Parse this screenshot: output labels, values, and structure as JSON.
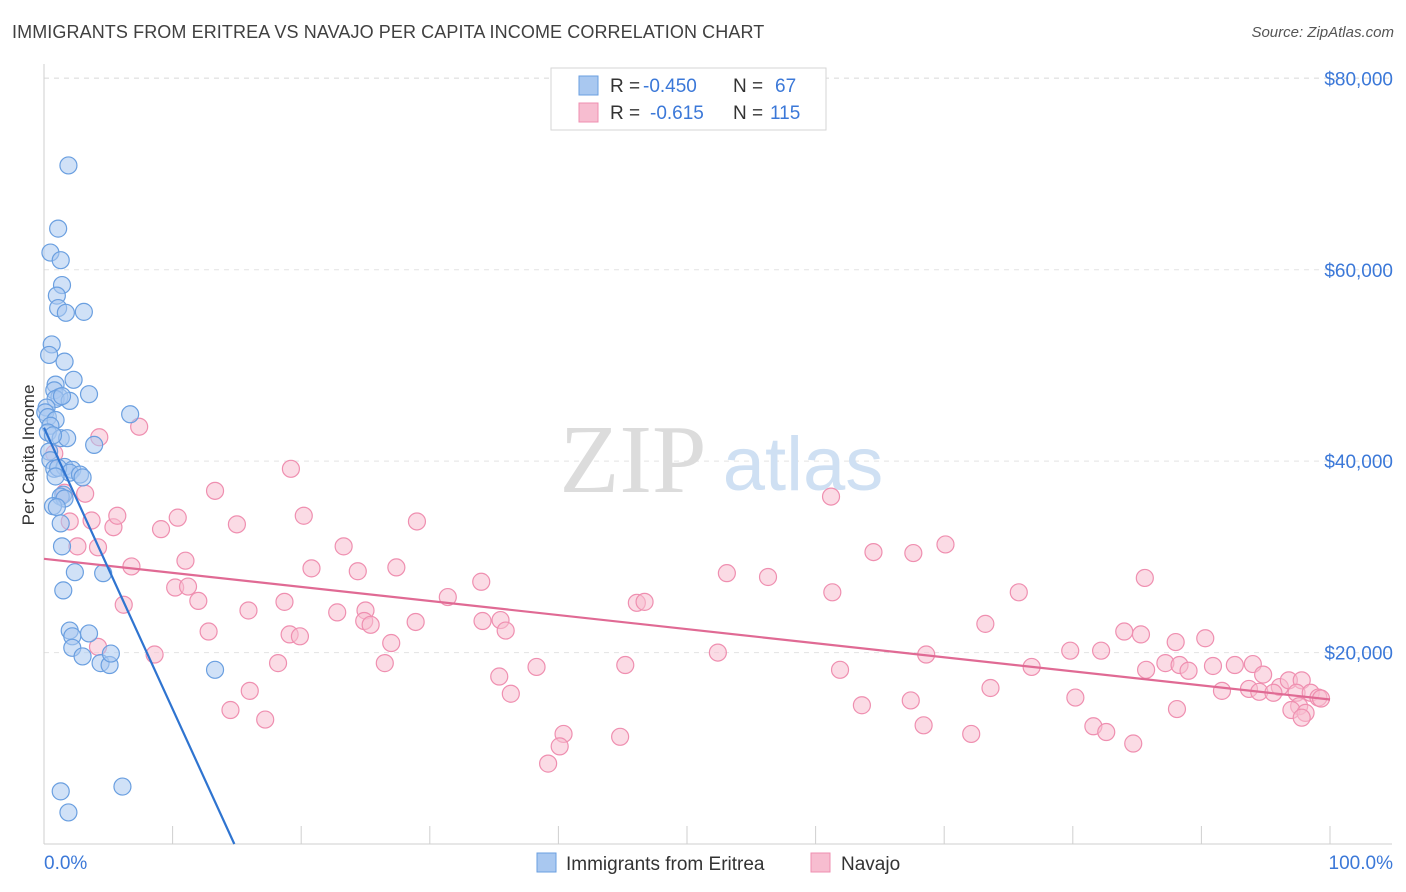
{
  "title": "IMMIGRANTS FROM ERITREA VS NAVAJO PER CAPITA INCOME CORRELATION CHART",
  "source": "Source: ZipAtlas.com",
  "watermark": {
    "zip": "ZIP",
    "atlas": "atlas"
  },
  "legend_box": {
    "rows": [
      {
        "r_label": "R =",
        "r_value": "-0.450",
        "n_label": "N =",
        "n_value": "67"
      },
      {
        "r_label": "R =",
        "r_value": "-0.615",
        "n_label": "N =",
        "n_value": "115"
      }
    ]
  },
  "bottom_legend": [
    "Immigrants from Eritrea",
    "Navajo"
  ],
  "colors": {
    "eritrea_fill": "#a9c8f0",
    "eritrea_stroke": "#6a9fe0",
    "eritrea_line": "#2f74d0",
    "navajo_fill": "#f7bdd0",
    "navajo_stroke": "#ef8fb0",
    "navajo_line": "#e06a94",
    "value_text": "#3b78d8",
    "grid": "#e3e3e3"
  },
  "chart_data": {
    "type": "scatter",
    "title": "IMMIGRANTS FROM ERITREA VS NAVAJO PER CAPITA INCOME CORRELATION CHART",
    "xlabel": "",
    "ylabel": "Per Capita Income",
    "x_tick_labels": [
      "0.0%",
      "100.0%"
    ],
    "y_tick_labels": [
      "$20,000",
      "$40,000",
      "$60,000",
      "$80,000"
    ],
    "y_ticks": [
      20000,
      40000,
      60000,
      80000
    ],
    "xlim": [
      0,
      100
    ],
    "ylim": [
      0,
      81500
    ],
    "grid": true,
    "legend_position": "top-center",
    "series": [
      {
        "name": "Immigrants from Eritrea",
        "r": -0.45,
        "n": 67,
        "trend": {
          "x0": 0,
          "y0": 43500,
          "x1": 14.8,
          "y1": 0
        },
        "points": [
          [
            1.9,
            70900
          ],
          [
            1.1,
            64300
          ],
          [
            0.5,
            61800
          ],
          [
            1.3,
            61000
          ],
          [
            1.4,
            58400
          ],
          [
            1.0,
            57300
          ],
          [
            1.1,
            56000
          ],
          [
            1.7,
            55500
          ],
          [
            3.1,
            55600
          ],
          [
            0.6,
            52200
          ],
          [
            0.4,
            51100
          ],
          [
            1.6,
            50400
          ],
          [
            2.3,
            48500
          ],
          [
            0.9,
            48000
          ],
          [
            0.8,
            47400
          ],
          [
            1.2,
            46700
          ],
          [
            3.5,
            47000
          ],
          [
            0.9,
            46500
          ],
          [
            2.0,
            46300
          ],
          [
            1.4,
            46800
          ],
          [
            0.2,
            45600
          ],
          [
            0.1,
            45100
          ],
          [
            0.3,
            44600
          ],
          [
            0.9,
            44300
          ],
          [
            0.5,
            43700
          ],
          [
            6.7,
            44900
          ],
          [
            0.3,
            43000
          ],
          [
            1.3,
            42400
          ],
          [
            1.8,
            42400
          ],
          [
            0.7,
            42700
          ],
          [
            3.9,
            41700
          ],
          [
            0.4,
            41000
          ],
          [
            0.5,
            40100
          ],
          [
            0.8,
            39200
          ],
          [
            1.6,
            39400
          ],
          [
            2.2,
            39100
          ],
          [
            1.1,
            39300
          ],
          [
            2.0,
            38800
          ],
          [
            2.8,
            38600
          ],
          [
            3.0,
            38300
          ],
          [
            0.9,
            38400
          ],
          [
            1.5,
            36500
          ],
          [
            1.3,
            36300
          ],
          [
            1.6,
            36100
          ],
          [
            0.7,
            35300
          ],
          [
            1.0,
            35200
          ],
          [
            1.3,
            33500
          ],
          [
            1.4,
            31100
          ],
          [
            1.5,
            26500
          ],
          [
            2.4,
            28400
          ],
          [
            4.6,
            28300
          ],
          [
            2.0,
            22300
          ],
          [
            3.5,
            22000
          ],
          [
            2.2,
            21700
          ],
          [
            2.2,
            20500
          ],
          [
            3.0,
            19600
          ],
          [
            4.4,
            18900
          ],
          [
            5.1,
            18700
          ],
          [
            5.2,
            19900
          ],
          [
            13.3,
            18200
          ],
          [
            1.3,
            5500
          ],
          [
            6.1,
            6000
          ],
          [
            1.9,
            3300
          ]
        ]
      },
      {
        "name": "Navajo",
        "r": -0.615,
        "n": 115,
        "trend": {
          "x0": 0,
          "y0": 29800,
          "x1": 100,
          "y1": 15100
        },
        "points": [
          [
            7.4,
            43600
          ],
          [
            4.3,
            42500
          ],
          [
            0.8,
            40800
          ],
          [
            19.2,
            39200
          ],
          [
            1.6,
            36700
          ],
          [
            3.2,
            36600
          ],
          [
            13.3,
            36900
          ],
          [
            61.2,
            36300
          ],
          [
            2.0,
            33700
          ],
          [
            3.7,
            33800
          ],
          [
            5.4,
            33100
          ],
          [
            5.7,
            34300
          ],
          [
            9.1,
            32900
          ],
          [
            10.4,
            34100
          ],
          [
            15.0,
            33400
          ],
          [
            20.2,
            34300
          ],
          [
            29.0,
            33700
          ],
          [
            2.6,
            31100
          ],
          [
            4.2,
            31000
          ],
          [
            23.3,
            31100
          ],
          [
            67.6,
            30400
          ],
          [
            70.1,
            31300
          ],
          [
            64.5,
            30500
          ],
          [
            11.0,
            29600
          ],
          [
            6.8,
            29000
          ],
          [
            20.8,
            28800
          ],
          [
            27.4,
            28900
          ],
          [
            24.4,
            28500
          ],
          [
            53.1,
            28300
          ],
          [
            56.3,
            27900
          ],
          [
            85.6,
            27800
          ],
          [
            10.2,
            26800
          ],
          [
            11.2,
            26900
          ],
          [
            34.0,
            27400
          ],
          [
            12.0,
            25400
          ],
          [
            6.2,
            25000
          ],
          [
            18.7,
            25300
          ],
          [
            31.4,
            25800
          ],
          [
            46.1,
            25200
          ],
          [
            46.7,
            25300
          ],
          [
            61.3,
            26300
          ],
          [
            75.8,
            26300
          ],
          [
            15.9,
            24400
          ],
          [
            22.8,
            24200
          ],
          [
            25.0,
            24400
          ],
          [
            34.1,
            23300
          ],
          [
            35.5,
            23400
          ],
          [
            28.9,
            23200
          ],
          [
            24.9,
            23300
          ],
          [
            25.4,
            22900
          ],
          [
            12.8,
            22200
          ],
          [
            19.1,
            21900
          ],
          [
            35.9,
            22300
          ],
          [
            73.2,
            23000
          ],
          [
            84.0,
            22200
          ],
          [
            85.3,
            21900
          ],
          [
            19.9,
            21700
          ],
          [
            27.0,
            21000
          ],
          [
            88.0,
            21100
          ],
          [
            90.3,
            21500
          ],
          [
            4.2,
            20600
          ],
          [
            8.6,
            19800
          ],
          [
            52.4,
            20000
          ],
          [
            68.6,
            19800
          ],
          [
            79.8,
            20200
          ],
          [
            82.2,
            20200
          ],
          [
            18.2,
            18900
          ],
          [
            26.5,
            18900
          ],
          [
            38.3,
            18500
          ],
          [
            45.2,
            18700
          ],
          [
            76.8,
            18500
          ],
          [
            87.2,
            18900
          ],
          [
            88.3,
            18700
          ],
          [
            89.0,
            18100
          ],
          [
            90.9,
            18600
          ],
          [
            92.6,
            18700
          ],
          [
            94.0,
            18800
          ],
          [
            94.8,
            17700
          ],
          [
            96.1,
            16400
          ],
          [
            96.8,
            17100
          ],
          [
            97.8,
            17100
          ],
          [
            35.4,
            17500
          ],
          [
            61.9,
            18200
          ],
          [
            85.7,
            18200
          ],
          [
            16.0,
            16000
          ],
          [
            36.3,
            15700
          ],
          [
            73.6,
            16300
          ],
          [
            91.6,
            16000
          ],
          [
            93.7,
            16200
          ],
          [
            94.5,
            15900
          ],
          [
            95.6,
            15800
          ],
          [
            97.4,
            15800
          ],
          [
            98.5,
            15800
          ],
          [
            99.1,
            15300
          ],
          [
            14.5,
            14000
          ],
          [
            63.6,
            14500
          ],
          [
            67.4,
            15000
          ],
          [
            80.2,
            15300
          ],
          [
            88.1,
            14100
          ],
          [
            99.3,
            15200
          ],
          [
            97.6,
            14400
          ],
          [
            97.0,
            14000
          ],
          [
            98.1,
            13700
          ],
          [
            17.2,
            13000
          ],
          [
            97.8,
            13200
          ],
          [
            68.4,
            12400
          ],
          [
            72.1,
            11500
          ],
          [
            81.6,
            12300
          ],
          [
            82.6,
            11700
          ],
          [
            84.7,
            10500
          ],
          [
            40.4,
            11500
          ],
          [
            40.1,
            10200
          ],
          [
            44.8,
            11200
          ],
          [
            39.2,
            8400
          ]
        ]
      }
    ]
  }
}
